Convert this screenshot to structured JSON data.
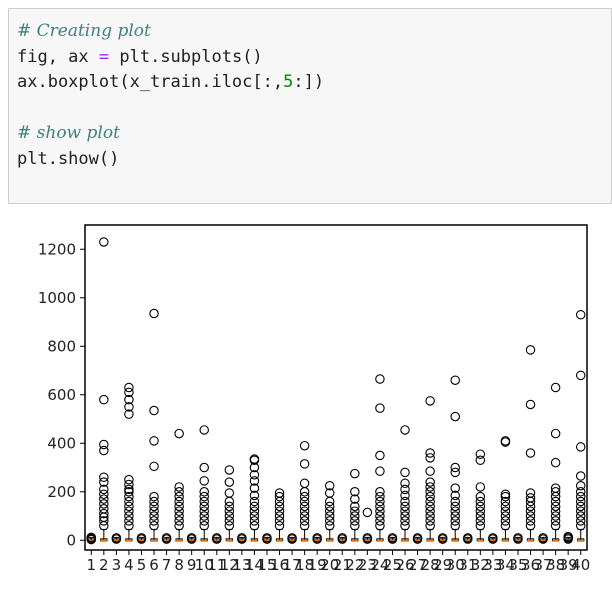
{
  "code_cell": {
    "lines": [
      [
        {
          "t": "# Creating plot",
          "c": "comment"
        }
      ],
      [
        {
          "t": "fig, ax ",
          "c": ""
        },
        {
          "t": "=",
          "c": "op"
        },
        {
          "t": " plt.subplots()",
          "c": ""
        }
      ],
      [
        {
          "t": "ax.boxplot(x_train.iloc[:,",
          "c": ""
        },
        {
          "t": "5",
          "c": "num"
        },
        {
          "t": ":])",
          "c": ""
        }
      ],
      [
        {
          "t": "",
          "c": ""
        }
      ],
      [
        {
          "t": "# show plot",
          "c": "comment"
        }
      ],
      [
        {
          "t": "plt.show()",
          "c": ""
        }
      ]
    ]
  },
  "chart_data": {
    "type": "boxplot",
    "title": "",
    "xlabel": "",
    "ylabel": "",
    "ylim": [
      -40,
      1300
    ],
    "yticks": [
      0,
      200,
      400,
      600,
      800,
      1000,
      1200
    ],
    "xticks": [
      "1",
      "2",
      "3",
      "4",
      "5",
      "6",
      "7",
      "8",
      "9",
      "10",
      "11",
      "12",
      "13",
      "14",
      "15",
      "16",
      "17",
      "18",
      "19",
      "20",
      "21",
      "22",
      "23",
      "24",
      "25",
      "26",
      "27",
      "28",
      "29",
      "30",
      "31",
      "32",
      "33",
      "34",
      "35",
      "36",
      "37",
      "38",
      "39",
      "40"
    ],
    "grid": false,
    "box_color": "#000000",
    "median_color": "#ff7f0e",
    "boxes": [
      {
        "whisker_hi": 12,
        "outliers": [
          3,
          6,
          9,
          12
        ]
      },
      {
        "whisker_hi": 45,
        "outliers": [
          60,
          80,
          95,
          110,
          130,
          150,
          170,
          190,
          210,
          240,
          260,
          370,
          395,
          580,
          1230
        ]
      },
      {
        "whisker_hi": 12,
        "outliers": [
          5,
          10
        ]
      },
      {
        "whisker_hi": 45,
        "outliers": [
          60,
          80,
          100,
          120,
          140,
          160,
          180,
          200,
          210,
          230,
          250,
          520,
          550,
          580,
          610,
          630
        ]
      },
      {
        "whisker_hi": 12,
        "outliers": [
          5,
          10
        ]
      },
      {
        "whisker_hi": 45,
        "outliers": [
          60,
          80,
          100,
          120,
          140,
          160,
          180,
          305,
          410,
          535,
          935
        ]
      },
      {
        "whisker_hi": 12,
        "outliers": [
          5,
          10
        ]
      },
      {
        "whisker_hi": 45,
        "outliers": [
          60,
          80,
          100,
          120,
          140,
          160,
          180,
          200,
          220,
          440
        ]
      },
      {
        "whisker_hi": 12,
        "outliers": [
          5,
          10
        ]
      },
      {
        "whisker_hi": 45,
        "outliers": [
          60,
          80,
          100,
          120,
          140,
          160,
          180,
          200,
          245,
          300,
          455
        ]
      },
      {
        "whisker_hi": 12,
        "outliers": [
          5,
          10
        ]
      },
      {
        "whisker_hi": 45,
        "outliers": [
          60,
          80,
          100,
          120,
          140,
          160,
          195,
          240,
          290
        ]
      },
      {
        "whisker_hi": 12,
        "outliers": [
          5,
          10
        ]
      },
      {
        "whisker_hi": 45,
        "outliers": [
          60,
          80,
          100,
          120,
          140,
          160,
          185,
          215,
          245,
          270,
          300,
          330,
          335
        ]
      },
      {
        "whisker_hi": 12,
        "outliers": [
          5,
          10
        ]
      },
      {
        "whisker_hi": 45,
        "outliers": [
          60,
          80,
          100,
          120,
          140,
          160,
          180,
          195
        ]
      },
      {
        "whisker_hi": 12,
        "outliers": [
          5,
          10
        ]
      },
      {
        "whisker_hi": 45,
        "outliers": [
          60,
          80,
          100,
          120,
          140,
          160,
          180,
          200,
          235,
          315,
          390
        ]
      },
      {
        "whisker_hi": 12,
        "outliers": [
          5,
          10
        ]
      },
      {
        "whisker_hi": 45,
        "outliers": [
          60,
          80,
          100,
          120,
          140,
          160,
          195,
          225
        ]
      },
      {
        "whisker_hi": 12,
        "outliers": [
          5,
          10
        ]
      },
      {
        "whisker_hi": 45,
        "outliers": [
          60,
          80,
          100,
          120,
          140,
          170,
          200,
          275
        ]
      },
      {
        "whisker_hi": 12,
        "outliers": [
          5,
          10,
          115
        ]
      },
      {
        "whisker_hi": 45,
        "outliers": [
          60,
          80,
          100,
          120,
          140,
          160,
          180,
          200,
          285,
          350,
          545,
          665
        ]
      },
      {
        "whisker_hi": 12,
        "outliers": [
          5,
          10
        ]
      },
      {
        "whisker_hi": 45,
        "outliers": [
          60,
          80,
          100,
          120,
          140,
          160,
          185,
          210,
          235,
          280,
          455
        ]
      },
      {
        "whisker_hi": 12,
        "outliers": [
          5,
          10
        ]
      },
      {
        "whisker_hi": 45,
        "outliers": [
          60,
          80,
          100,
          120,
          140,
          160,
          180,
          200,
          220,
          240,
          285,
          340,
          360,
          575
        ]
      },
      {
        "whisker_hi": 12,
        "outliers": [
          5,
          10
        ]
      },
      {
        "whisker_hi": 45,
        "outliers": [
          60,
          80,
          100,
          120,
          140,
          160,
          185,
          215,
          280,
          300,
          510,
          660
        ]
      },
      {
        "whisker_hi": 12,
        "outliers": [
          5,
          10
        ]
      },
      {
        "whisker_hi": 45,
        "outliers": [
          60,
          80,
          100,
          120,
          140,
          160,
          180,
          220,
          330,
          355
        ]
      },
      {
        "whisker_hi": 12,
        "outliers": [
          5,
          10
        ]
      },
      {
        "whisker_hi": 45,
        "outliers": [
          60,
          80,
          100,
          120,
          140,
          160,
          180,
          190,
          405,
          410
        ]
      },
      {
        "whisker_hi": 12,
        "outliers": [
          5,
          10
        ]
      },
      {
        "whisker_hi": 45,
        "outliers": [
          60,
          80,
          100,
          120,
          140,
          160,
          175,
          195,
          360,
          560,
          785
        ]
      },
      {
        "whisker_hi": 12,
        "outliers": [
          5,
          10
        ]
      },
      {
        "whisker_hi": 45,
        "outliers": [
          60,
          80,
          100,
          120,
          140,
          160,
          180,
          200,
          215,
          320,
          440,
          630
        ]
      },
      {
        "whisker_hi": 12,
        "outliers": [
          5,
          10,
          15
        ]
      },
      {
        "whisker_hi": 45,
        "outliers": [
          60,
          80,
          100,
          120,
          140,
          160,
          180,
          200,
          225,
          265,
          385,
          680,
          930
        ]
      }
    ]
  }
}
